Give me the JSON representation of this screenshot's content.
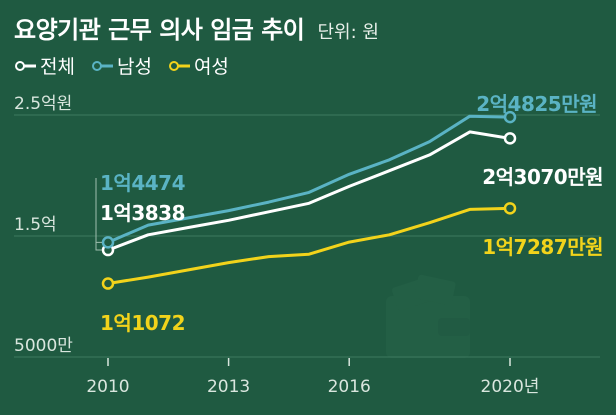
{
  "header": {
    "title": "요양기관 근무 의사 임금 추이",
    "unit": "단위: 원"
  },
  "colors": {
    "background": "#1f5a41",
    "male": "#5ab3c4",
    "total": "#ffffff",
    "female": "#f2d31b",
    "grid": "#3d7a5f",
    "axis_text": "#d9e6de"
  },
  "chart_data": {
    "type": "line",
    "title": "요양기관 근무 의사 임금 추이",
    "unit": "단위: 원",
    "x": [
      2010,
      2011,
      2012,
      2013,
      2014,
      2015,
      2016,
      2017,
      2018,
      2019,
      2020
    ],
    "xticks": [
      "2010",
      "2013",
      "2016",
      "2020년"
    ],
    "xtick_values": [
      2010,
      2013,
      2016,
      2020
    ],
    "yticks": [
      "2.5억원",
      "1.5억",
      "5000만"
    ],
    "ytick_values": [
      250000000,
      150000000,
      50000000
    ],
    "ylim": [
      50000000,
      250000000
    ],
    "grid": true,
    "legend_placement": "top-left",
    "series": [
      {
        "name": "전체",
        "key": "total",
        "values": [
          138380000,
          151000000,
          157000000,
          163000000,
          170000000,
          177000000,
          191000000,
          204000000,
          217000000,
          236000000,
          230700000
        ],
        "start_label": "1억3838",
        "end_label": "2억3070만원"
      },
      {
        "name": "남성",
        "key": "male",
        "values": [
          144740000,
          159000000,
          165000000,
          171000000,
          178000000,
          186000000,
          201000000,
          213000000,
          228000000,
          249000000,
          248250000
        ],
        "start_label": "1억4474",
        "end_label": "2억4825만원"
      },
      {
        "name": "여성",
        "key": "female",
        "values": [
          110720000,
          116000000,
          122000000,
          128000000,
          133000000,
          135000000,
          145000000,
          151000000,
          161000000,
          172000000,
          172870000
        ],
        "start_label": "1억1072",
        "end_label": "1억7287만원"
      }
    ]
  }
}
